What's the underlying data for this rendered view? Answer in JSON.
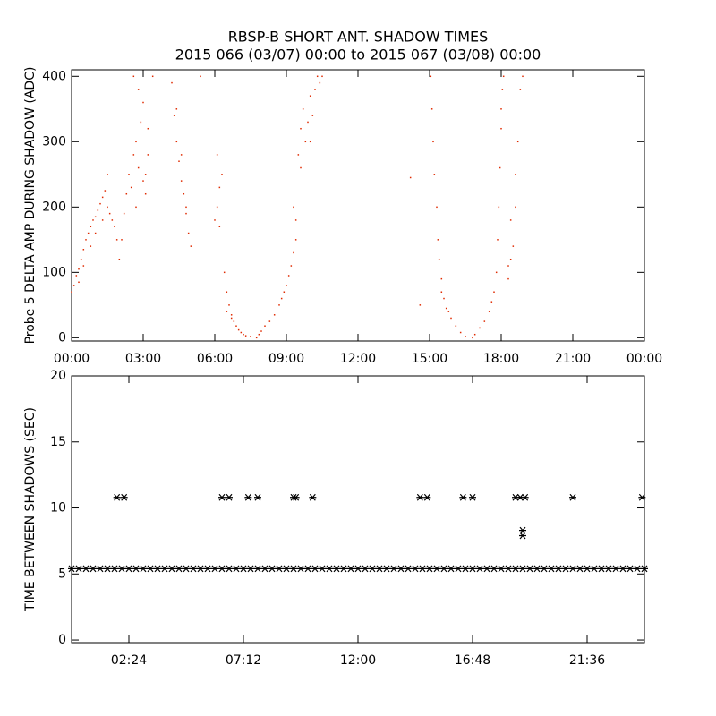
{
  "chart_data": [
    {
      "type": "scatter",
      "title": "RBSP-B SHORT ANT. SHADOW TIMES",
      "subtitle": "2015 066 (03/07) 00:00 to 2015 067 (03/08) 00:00",
      "y_label": "Probe 5 DELTA AMP DURING SHADOW (ADC)",
      "color": "#e02a00",
      "marker": "dot",
      "xlim": [
        0,
        24
      ],
      "ylim": [
        -5,
        410
      ],
      "xticks": [
        {
          "value": 0,
          "label": "00:00"
        },
        {
          "value": 3,
          "label": "03:00"
        },
        {
          "value": 6,
          "label": "06:00"
        },
        {
          "value": 9,
          "label": "09:00"
        },
        {
          "value": 12,
          "label": "12:00"
        },
        {
          "value": 15,
          "label": "15:00"
        },
        {
          "value": 18,
          "label": "18:00"
        },
        {
          "value": 21,
          "label": "21:00"
        },
        {
          "value": 24,
          "label": "00:00"
        }
      ],
      "yticks": [
        0,
        100,
        200,
        300,
        400
      ],
      "x": [
        0.0,
        0.1,
        0.2,
        0.3,
        0.4,
        0.5,
        0.6,
        0.7,
        0.8,
        0.9,
        1.0,
        1.1,
        1.2,
        1.3,
        1.4,
        1.5,
        1.6,
        1.7,
        1.8,
        1.9,
        2.0,
        1.5,
        1.3,
        1.0,
        0.8,
        0.5,
        0.3,
        2.1,
        2.2,
        2.3,
        2.4,
        2.5,
        2.6,
        2.7,
        2.8,
        2.9,
        3.0,
        3.1,
        3.2,
        2.6,
        2.8,
        3.0,
        3.2,
        2.7,
        3.1,
        3.4,
        4.2,
        4.3,
        4.4,
        4.5,
        4.6,
        4.7,
        4.8,
        4.9,
        5.0,
        4.4,
        4.6,
        4.8,
        5.4,
        6.0,
        6.1,
        6.2,
        6.3,
        6.2,
        6.1,
        6.4,
        6.5,
        6.6,
        6.7,
        6.8,
        6.9,
        7.0,
        7.1,
        7.2,
        7.3,
        7.5,
        6.5,
        6.7,
        7.75,
        7.85,
        7.95,
        8.1,
        8.3,
        8.5,
        8.7,
        8.8,
        8.9,
        9.0,
        9.1,
        9.2,
        9.3,
        9.4,
        9.4,
        9.3,
        9.5,
        9.6,
        9.7,
        9.8,
        9.9,
        10.0,
        10.1,
        10.2,
        10.3,
        10.4,
        10.5,
        9.6,
        10.0,
        14.2,
        14.6,
        15.05,
        15.1,
        15.15,
        15.2,
        15.3,
        15.35,
        15.4,
        15.5,
        15.6,
        15.7,
        15.9,
        16.1,
        16.3,
        16.5,
        15.5,
        15.8,
        16.8,
        16.9,
        17.1,
        17.3,
        17.5,
        17.6,
        17.7,
        17.8,
        17.85,
        17.9,
        17.95,
        18.0,
        18.05,
        18.1,
        18.0,
        18.3,
        18.4,
        18.5,
        18.3,
        18.6,
        18.7,
        18.8,
        18.9,
        18.6,
        18.4
      ],
      "values": [
        70,
        80,
        95,
        105,
        120,
        135,
        150,
        160,
        170,
        180,
        185,
        195,
        205,
        215,
        225,
        200,
        190,
        180,
        170,
        150,
        120,
        250,
        180,
        160,
        140,
        110,
        85,
        150,
        190,
        220,
        250,
        230,
        280,
        300,
        260,
        330,
        240,
        250,
        280,
        400,
        380,
        360,
        320,
        200,
        220,
        400,
        390,
        340,
        300,
        270,
        240,
        220,
        190,
        160,
        140,
        350,
        280,
        200,
        400,
        180,
        200,
        230,
        250,
        170,
        280,
        100,
        70,
        50,
        35,
        25,
        18,
        12,
        8,
        5,
        3,
        2,
        40,
        30,
        0,
        5,
        10,
        18,
        25,
        35,
        50,
        60,
        70,
        80,
        95,
        110,
        130,
        150,
        180,
        200,
        280,
        320,
        350,
        300,
        330,
        370,
        340,
        380,
        400,
        390,
        400,
        260,
        300,
        245,
        50,
        400,
        350,
        300,
        250,
        200,
        150,
        120,
        90,
        60,
        45,
        30,
        18,
        8,
        2,
        70,
        40,
        0,
        5,
        15,
        25,
        40,
        55,
        70,
        100,
        150,
        200,
        260,
        320,
        380,
        400,
        350,
        90,
        120,
        140,
        110,
        200,
        300,
        380,
        400,
        250,
        180
      ]
    },
    {
      "type": "scatter",
      "y_label": "TIME BETWEEN SHADOWS (SEC)",
      "color": "#000000",
      "marker": "asterisk",
      "xlim": [
        0,
        24
      ],
      "ylim": [
        -0.2,
        20
      ],
      "xticks": [
        {
          "value": 2.4,
          "label": "02:24"
        },
        {
          "value": 7.2,
          "label": "07:12"
        },
        {
          "value": 12,
          "label": "12:00"
        },
        {
          "value": 16.8,
          "label": "16:48"
        },
        {
          "value": 21.6,
          "label": "21:36"
        }
      ],
      "yticks": [
        0,
        5,
        10,
        15,
        20
      ],
      "x": [
        0,
        0.3,
        0.6,
        0.9,
        1.2,
        1.5,
        1.8,
        2.1,
        2.4,
        2.7,
        3,
        3.3,
        3.6,
        3.9,
        4.2,
        4.5,
        4.8,
        5.1,
        5.4,
        5.7,
        6,
        6.3,
        6.6,
        6.9,
        7.2,
        7.5,
        7.8,
        8.1,
        8.4,
        8.7,
        9,
        9.3,
        9.6,
        9.9,
        10.2,
        10.5,
        10.8,
        11.1,
        11.4,
        11.7,
        12,
        12.3,
        12.6,
        12.9,
        13.2,
        13.5,
        13.8,
        14.1,
        14.4,
        14.7,
        15,
        15.3,
        15.6,
        15.9,
        16.2,
        16.5,
        16.8,
        17.1,
        17.4,
        17.7,
        18,
        18.3,
        18.6,
        18.9,
        19.2,
        19.5,
        19.8,
        20.1,
        20.4,
        20.7,
        21,
        21.3,
        21.6,
        21.9,
        22.2,
        22.5,
        22.8,
        23.1,
        23.4,
        23.7,
        24,
        1.9,
        2.2,
        6.3,
        6.6,
        7.4,
        7.8,
        9.3,
        9.4,
        10.1,
        14.6,
        14.9,
        16.4,
        16.8,
        18.6,
        18.8,
        19.0,
        21.0,
        23.9,
        18.9,
        18.9
      ],
      "values": [
        5.4,
        5.4,
        5.4,
        5.4,
        5.4,
        5.4,
        5.4,
        5.4,
        5.4,
        5.4,
        5.4,
        5.4,
        5.4,
        5.4,
        5.4,
        5.4,
        5.4,
        5.4,
        5.4,
        5.4,
        5.4,
        5.4,
        5.4,
        5.4,
        5.4,
        5.4,
        5.4,
        5.4,
        5.4,
        5.4,
        5.4,
        5.4,
        5.4,
        5.4,
        5.4,
        5.4,
        5.4,
        5.4,
        5.4,
        5.4,
        5.4,
        5.4,
        5.4,
        5.4,
        5.4,
        5.4,
        5.4,
        5.4,
        5.4,
        5.4,
        5.4,
        5.4,
        5.4,
        5.4,
        5.4,
        5.4,
        5.4,
        5.4,
        5.4,
        5.4,
        5.4,
        5.4,
        5.4,
        5.4,
        5.4,
        5.4,
        5.4,
        5.4,
        5.4,
        5.4,
        5.4,
        5.4,
        5.4,
        5.4,
        5.4,
        5.4,
        5.4,
        5.4,
        5.4,
        5.4,
        5.4,
        10.8,
        10.8,
        10.8,
        10.8,
        10.8,
        10.8,
        10.8,
        10.8,
        10.8,
        10.8,
        10.8,
        10.8,
        10.8,
        10.8,
        10.8,
        10.8,
        10.8,
        10.8,
        8.3,
        7.9
      ]
    }
  ]
}
